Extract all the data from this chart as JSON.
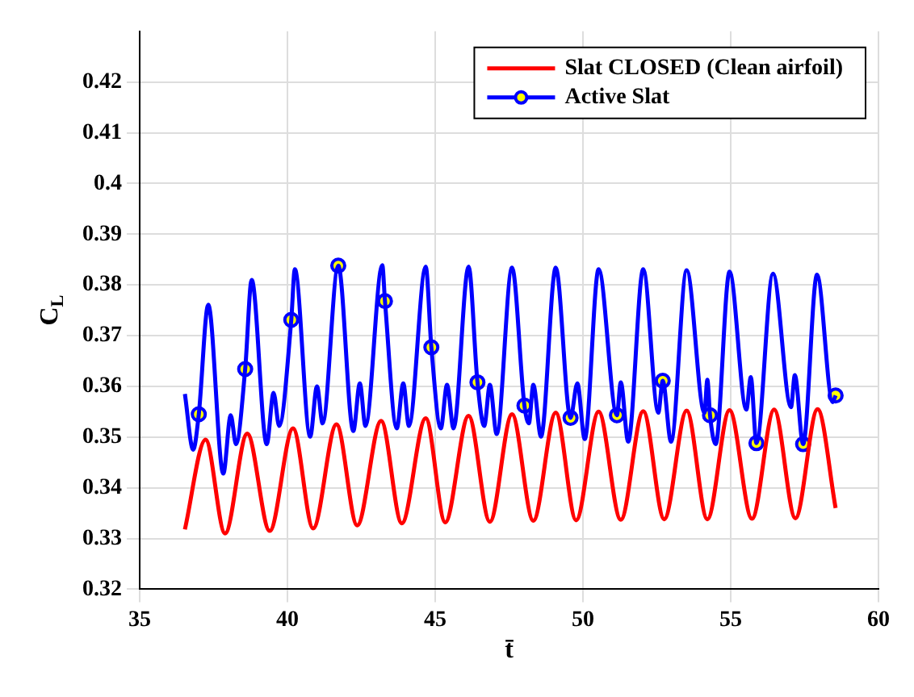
{
  "chart_data": {
    "type": "line",
    "xlabel": "t̄",
    "ylabel": "C$_{L}$",
    "xlim": [
      35,
      60
    ],
    "xticks": [
      35,
      40,
      45,
      50,
      55,
      60
    ],
    "ylim": [
      0.32,
      0.43
    ],
    "yticks": [
      0.32,
      0.33,
      0.34,
      0.35,
      0.36,
      0.37,
      0.38,
      0.39,
      0.4,
      0.41,
      0.42
    ],
    "grid": true,
    "legend": "top right",
    "line_style": "solid",
    "series": [
      {
        "name": "Slat CLOSED (Clean airfoil)",
        "color": "#ff0000",
        "x": [
          36.53,
          37.23,
          37.89,
          38.64,
          39.4,
          40.19,
          40.87,
          41.66,
          42.36,
          43.17,
          43.87,
          44.68,
          45.34,
          46.13,
          46.85,
          47.6,
          48.32,
          49.08,
          49.77,
          50.53,
          51.28,
          52.04,
          52.75,
          53.51,
          54.21,
          54.96,
          55.72,
          56.47,
          57.19,
          57.94,
          58.55
        ],
        "values": [
          0.3318,
          0.3495,
          0.331,
          0.3507,
          0.3315,
          0.3517,
          0.332,
          0.3525,
          0.3326,
          0.3532,
          0.333,
          0.3537,
          0.3332,
          0.3542,
          0.3333,
          0.3545,
          0.3335,
          0.3548,
          0.3336,
          0.355,
          0.3337,
          0.3551,
          0.3338,
          0.3552,
          0.3338,
          0.3553,
          0.3339,
          0.3554,
          0.334,
          0.3555,
          0.336
        ]
      },
      {
        "name": "Active Slat",
        "color": "#0000ff",
        "x": [
          36.53,
          36.81,
          37.0,
          37.32,
          37.83,
          38.08,
          38.26,
          38.57,
          38.79,
          39.3,
          39.53,
          39.72,
          40.13,
          40.25,
          40.77,
          41.0,
          41.19,
          41.72,
          42.23,
          42.45,
          42.64,
          43.21,
          43.3,
          43.7,
          43.92,
          44.11,
          44.68,
          44.87,
          45.19,
          45.4,
          45.62,
          46.13,
          46.43,
          46.66,
          46.85,
          47.08,
          47.6,
          48.02,
          48.17,
          48.32,
          48.58,
          49.08,
          49.58,
          49.81,
          50.06,
          50.53,
          51.15,
          51.28,
          51.53,
          52.04,
          52.55,
          52.7,
          52.98,
          53.51,
          54.11,
          54.21,
          54.3,
          54.49,
          54.96,
          55.53,
          55.68,
          55.87,
          56.43,
          57.04,
          57.17,
          57.45,
          57.92,
          58.45,
          58.55
        ],
        "values": [
          0.3585,
          0.3475,
          0.3545,
          0.3761,
          0.3428,
          0.3543,
          0.3486,
          0.3634,
          0.381,
          0.3486,
          0.3587,
          0.3522,
          0.3731,
          0.3831,
          0.3501,
          0.36,
          0.3527,
          0.3838,
          0.3512,
          0.3606,
          0.3522,
          0.3839,
          0.3768,
          0.3517,
          0.3606,
          0.3522,
          0.3836,
          0.3677,
          0.3517,
          0.3603,
          0.3517,
          0.3836,
          0.3608,
          0.3522,
          0.3603,
          0.3506,
          0.3834,
          0.3562,
          0.3527,
          0.3603,
          0.3501,
          0.3834,
          0.3538,
          0.3606,
          0.3496,
          0.3831,
          0.3543,
          0.3608,
          0.3491,
          0.3831,
          0.3548,
          0.3611,
          0.3491,
          0.3829,
          0.3548,
          0.3613,
          0.3543,
          0.3486,
          0.3826,
          0.3554,
          0.3618,
          0.3488,
          0.3822,
          0.3559,
          0.3622,
          0.3486,
          0.382,
          0.3569,
          0.3582
        ]
      },
      {
        "type": "scatter",
        "color": "#0000ff",
        "marker": "circle",
        "x": [
          37.0,
          38.57,
          40.13,
          41.72,
          43.3,
          44.87,
          46.43,
          48.02,
          49.58,
          51.15,
          52.7,
          54.3,
          55.87,
          57.45,
          58.55
        ],
        "values": [
          0.3545,
          0.3634,
          0.3731,
          0.3838,
          0.3768,
          0.3677,
          0.3608,
          0.3562,
          0.3538,
          0.3543,
          0.3611,
          0.3543,
          0.3488,
          0.3486,
          0.3582
        ]
      }
    ]
  }
}
